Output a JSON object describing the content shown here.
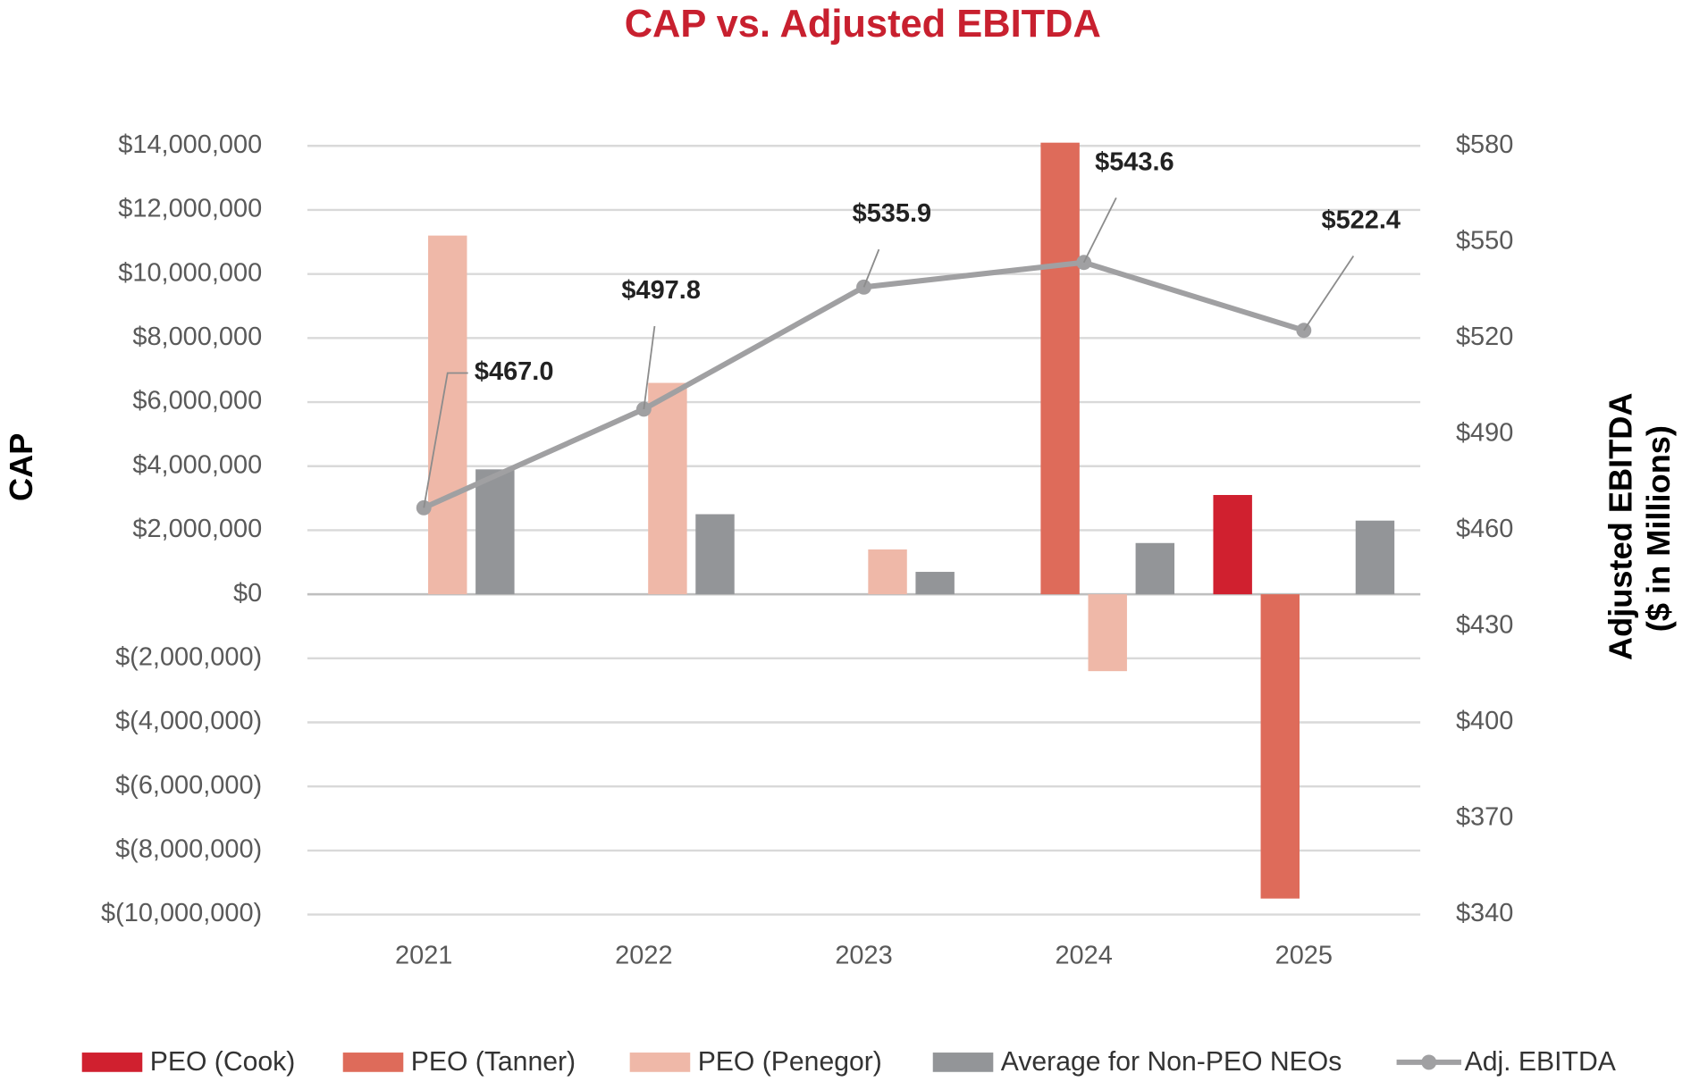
{
  "chart_data": {
    "type": "bar",
    "title": "CAP vs. Adjusted EBITDA",
    "ylabel": "CAP",
    "y2label": [
      "Adjusted EBITDA",
      "($ in Millions)"
    ],
    "categories": [
      "2021",
      "2022",
      "2023",
      "2024",
      "2025"
    ],
    "series": [
      {
        "name": "PEO (Cook)",
        "color": "#d0202f",
        "values": [
          null,
          null,
          null,
          null,
          3100000
        ]
      },
      {
        "name": "PEO (Tanner)",
        "color": "#de6b5a",
        "values": [
          null,
          null,
          null,
          14100000,
          -9500000
        ]
      },
      {
        "name": "PEO (Penegor)",
        "color": "#efb8a8",
        "values": [
          11200000,
          6600000,
          1400000,
          -2400000,
          null
        ]
      },
      {
        "name": "Average for Non-PEO NEOs",
        "color": "#939598",
        "values": [
          3900000,
          2500000,
          700000,
          1600000,
          2300000
        ]
      },
      {
        "name": "Adj. EBITDA",
        "type": "line",
        "axis": "y2",
        "color": "#a0a0a2",
        "values": [
          467.0,
          497.8,
          535.9,
          543.6,
          522.4
        ],
        "value_labels": [
          "$467.0",
          "$497.8",
          "$535.9",
          "$543.6",
          "$522.4"
        ]
      }
    ],
    "ylim": [
      -10000000,
      14000000
    ],
    "yticks": [
      {
        "value": -10000000,
        "label": "$(10,000,000)"
      },
      {
        "value": -8000000,
        "label": "$(8,000,000)"
      },
      {
        "value": -6000000,
        "label": "$(6,000,000)"
      },
      {
        "value": -4000000,
        "label": "$(4,000,000)"
      },
      {
        "value": -2000000,
        "label": "$(2,000,000)"
      },
      {
        "value": 0,
        "label": "$0"
      },
      {
        "value": 2000000,
        "label": "$2,000,000"
      },
      {
        "value": 4000000,
        "label": "$4,000,000"
      },
      {
        "value": 6000000,
        "label": "$6,000,000"
      },
      {
        "value": 8000000,
        "label": "$8,000,000"
      },
      {
        "value": 10000000,
        "label": "$10,000,000"
      },
      {
        "value": 12000000,
        "label": "$12,000,000"
      },
      {
        "value": 14000000,
        "label": "$14,000,000"
      }
    ],
    "y2lim": [
      340,
      580
    ],
    "y2ticks": [
      {
        "value": 340,
        "label": "$340"
      },
      {
        "value": 370,
        "label": "$370"
      },
      {
        "value": 400,
        "label": "$400"
      },
      {
        "value": 430,
        "label": "$430"
      },
      {
        "value": 460,
        "label": "$460"
      },
      {
        "value": 490,
        "label": "$490"
      },
      {
        "value": 520,
        "label": "$520"
      },
      {
        "value": 550,
        "label": "$550"
      },
      {
        "value": 580,
        "label": "$580"
      }
    ],
    "grid": true,
    "legend": "bottom"
  }
}
